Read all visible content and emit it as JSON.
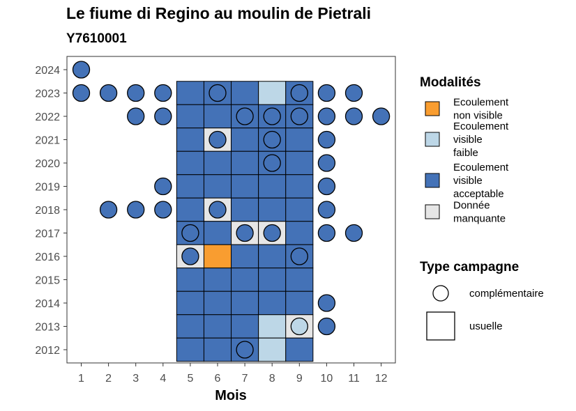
{
  "chart_data": {
    "type": "heatmap",
    "title": "Le fiume di Regino au moulin de Pietrali",
    "subtitle": "Y7610001",
    "xlabel": "Mois",
    "ylabel": "",
    "x_categories": [
      "1",
      "2",
      "3",
      "4",
      "5",
      "6",
      "7",
      "8",
      "9",
      "10",
      "11",
      "12"
    ],
    "y_categories": [
      "2012",
      "2013",
      "2014",
      "2015",
      "2016",
      "2017",
      "2018",
      "2019",
      "2020",
      "2021",
      "2022",
      "2023",
      "2024"
    ],
    "legend_modalites": {
      "title": "Modalités",
      "entries": [
        {
          "key": "non_visible",
          "lines": [
            "Ecoulement",
            "non visible"
          ],
          "color": "#f99d30"
        },
        {
          "key": "faible",
          "lines": [
            "Ecoulement",
            "visible",
            "faible"
          ],
          "color": "#bdd7e7"
        },
        {
          "key": "acceptable",
          "lines": [
            "Ecoulement",
            "visible",
            "acceptable"
          ],
          "color": "#4472b7"
        },
        {
          "key": "manquante",
          "lines": [
            "Donnée",
            "manquante"
          ],
          "color": "#e6e6e6"
        }
      ]
    },
    "legend_campagne": {
      "title": "Type campagne",
      "entries": [
        {
          "key": "complementaire",
          "label": "complémentaire",
          "shape": "circle"
        },
        {
          "key": "usuelle",
          "label": "usuelle",
          "shape": "square"
        }
      ]
    },
    "usuelle": [
      {
        "year": "2023",
        "values": {
          "5": "acceptable",
          "6": "acceptable",
          "7": "acceptable",
          "8": "faible",
          "9": "acceptable"
        }
      },
      {
        "year": "2022",
        "values": {
          "5": "acceptable",
          "6": "acceptable",
          "7": "acceptable",
          "8": "acceptable",
          "9": "acceptable"
        }
      },
      {
        "year": "2021",
        "values": {
          "5": "acceptable",
          "6": "manquante",
          "7": "acceptable",
          "8": "acceptable",
          "9": "acceptable"
        }
      },
      {
        "year": "2020",
        "values": {
          "5": "acceptable",
          "6": "acceptable",
          "7": "acceptable",
          "8": "acceptable",
          "9": "acceptable"
        }
      },
      {
        "year": "2019",
        "values": {
          "5": "acceptable",
          "6": "acceptable",
          "7": "acceptable",
          "8": "acceptable",
          "9": "acceptable"
        }
      },
      {
        "year": "2018",
        "values": {
          "5": "acceptable",
          "6": "manquante",
          "7": "acceptable",
          "8": "acceptable",
          "9": "acceptable"
        }
      },
      {
        "year": "2017",
        "values": {
          "5": "acceptable",
          "6": "acceptable",
          "7": "manquante",
          "8": "manquante",
          "9": "acceptable"
        }
      },
      {
        "year": "2016",
        "values": {
          "5": "manquante",
          "6": "non_visible",
          "7": "acceptable",
          "8": "acceptable",
          "9": "acceptable"
        }
      },
      {
        "year": "2015",
        "values": {
          "5": "acceptable",
          "6": "acceptable",
          "7": "acceptable",
          "8": "acceptable",
          "9": "acceptable"
        }
      },
      {
        "year": "2014",
        "values": {
          "5": "acceptable",
          "6": "acceptable",
          "7": "acceptable",
          "8": "acceptable",
          "9": "acceptable"
        }
      },
      {
        "year": "2013",
        "values": {
          "5": "acceptable",
          "6": "acceptable",
          "7": "acceptable",
          "8": "faible",
          "9": "manquante"
        }
      },
      {
        "year": "2012",
        "values": {
          "5": "acceptable",
          "6": "acceptable",
          "7": "acceptable",
          "8": "faible",
          "9": "acceptable"
        }
      }
    ],
    "complementaire": [
      {
        "year": "2024",
        "month": "1",
        "value": "acceptable"
      },
      {
        "year": "2023",
        "month": "1",
        "value": "acceptable"
      },
      {
        "year": "2023",
        "month": "2",
        "value": "acceptable"
      },
      {
        "year": "2023",
        "month": "3",
        "value": "acceptable"
      },
      {
        "year": "2023",
        "month": "4",
        "value": "acceptable"
      },
      {
        "year": "2023",
        "month": "6",
        "value": "acceptable"
      },
      {
        "year": "2023",
        "month": "9",
        "value": "acceptable"
      },
      {
        "year": "2023",
        "month": "10",
        "value": "acceptable"
      },
      {
        "year": "2023",
        "month": "11",
        "value": "acceptable"
      },
      {
        "year": "2022",
        "month": "3",
        "value": "acceptable"
      },
      {
        "year": "2022",
        "month": "4",
        "value": "acceptable"
      },
      {
        "year": "2022",
        "month": "7",
        "value": "acceptable"
      },
      {
        "year": "2022",
        "month": "8",
        "value": "acceptable"
      },
      {
        "year": "2022",
        "month": "9",
        "value": "acceptable"
      },
      {
        "year": "2022",
        "month": "10",
        "value": "acceptable"
      },
      {
        "year": "2022",
        "month": "11",
        "value": "acceptable"
      },
      {
        "year": "2022",
        "month": "12",
        "value": "acceptable"
      },
      {
        "year": "2021",
        "month": "6",
        "value": "acceptable"
      },
      {
        "year": "2021",
        "month": "8",
        "value": "acceptable"
      },
      {
        "year": "2021",
        "month": "10",
        "value": "acceptable"
      },
      {
        "year": "2020",
        "month": "8",
        "value": "acceptable"
      },
      {
        "year": "2020",
        "month": "10",
        "value": "acceptable"
      },
      {
        "year": "2019",
        "month": "4",
        "value": "acceptable"
      },
      {
        "year": "2019",
        "month": "10",
        "value": "acceptable"
      },
      {
        "year": "2018",
        "month": "2",
        "value": "acceptable"
      },
      {
        "year": "2018",
        "month": "3",
        "value": "acceptable"
      },
      {
        "year": "2018",
        "month": "4",
        "value": "acceptable"
      },
      {
        "year": "2018",
        "month": "6",
        "value": "acceptable"
      },
      {
        "year": "2018",
        "month": "10",
        "value": "acceptable"
      },
      {
        "year": "2017",
        "month": "5",
        "value": "acceptable"
      },
      {
        "year": "2017",
        "month": "7",
        "value": "acceptable"
      },
      {
        "year": "2017",
        "month": "8",
        "value": "acceptable"
      },
      {
        "year": "2017",
        "month": "10",
        "value": "acceptable"
      },
      {
        "year": "2017",
        "month": "11",
        "value": "acceptable"
      },
      {
        "year": "2016",
        "month": "5",
        "value": "acceptable"
      },
      {
        "year": "2016",
        "month": "9",
        "value": "acceptable"
      },
      {
        "year": "2014",
        "month": "10",
        "value": "acceptable"
      },
      {
        "year": "2013",
        "month": "9",
        "value": "faible"
      },
      {
        "year": "2013",
        "month": "10",
        "value": "acceptable"
      },
      {
        "year": "2012",
        "month": "7",
        "value": "acceptable"
      }
    ],
    "grid": false,
    "legend_position": "right"
  }
}
